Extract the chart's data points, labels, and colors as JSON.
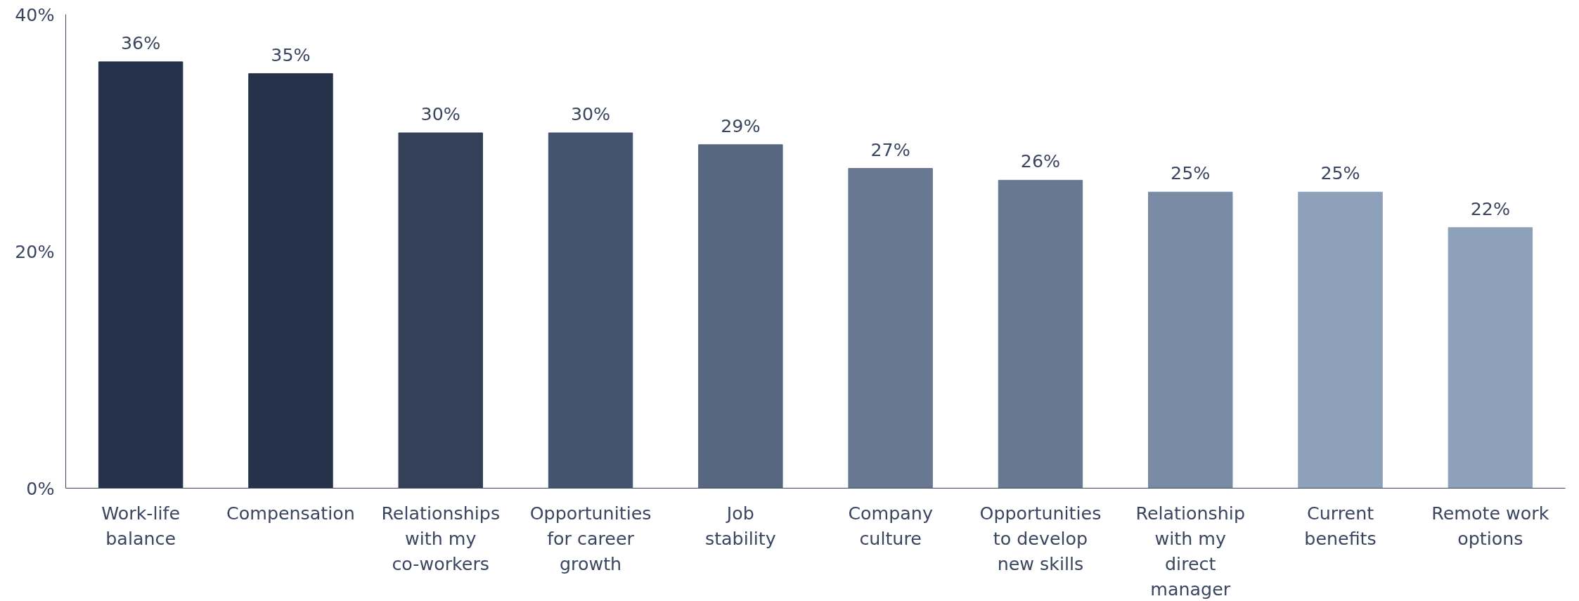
{
  "chart_data": {
    "type": "bar",
    "categories": [
      "Work-life balance",
      "Compensation",
      "Relationships with my co-workers",
      "Opportunities for career growth",
      "Job stability",
      "Company culture",
      "Opportunities to develop new skills",
      "Relationship with my direct manager",
      "Current benefits",
      "Remote work options"
    ],
    "values": [
      36,
      35,
      30,
      30,
      29,
      27,
      26,
      25,
      25,
      22
    ],
    "value_labels": [
      "36%",
      "35%",
      "30%",
      "30%",
      "29%",
      "27%",
      "26%",
      "25%",
      "25%",
      "22%"
    ],
    "colors": [
      "#253249",
      "#253249",
      "#343f58",
      "#44546e",
      "#56677f",
      "#687891",
      "#687891",
      "#7a8ba6",
      "#8ea1bb",
      "#8ea1bb"
    ],
    "ylim": [
      0,
      40
    ],
    "yticks": [
      {
        "value": 0,
        "label": "0%"
      },
      {
        "value": 20,
        "label": "20%"
      },
      {
        "value": 40,
        "label": "40%"
      }
    ],
    "grid": false
  }
}
